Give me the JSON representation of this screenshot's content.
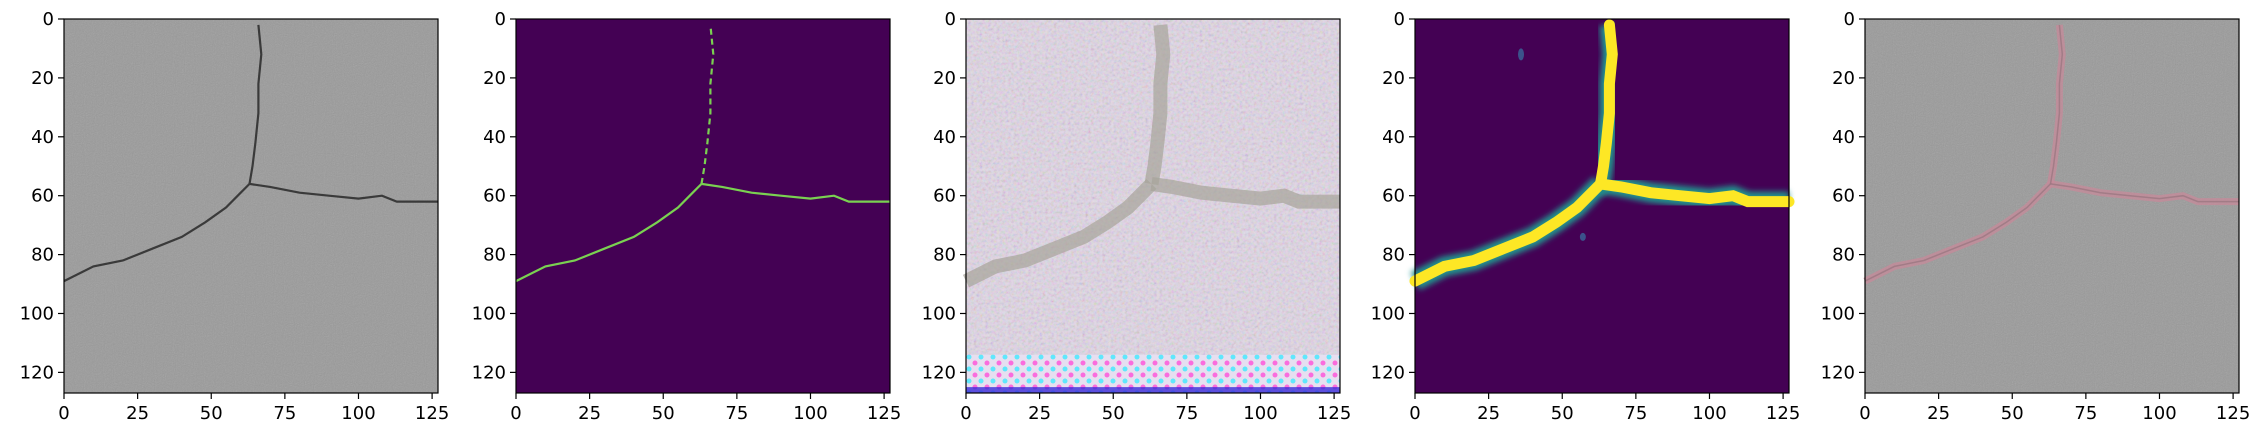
{
  "figure": {
    "panels": [
      {
        "kind": "photo",
        "description": "grayscale pavement crack photo"
      },
      {
        "kind": "mask",
        "description": "ground-truth binary crack mask"
      },
      {
        "kind": "noisy",
        "description": "reconstructed color-noise image"
      },
      {
        "kind": "heatmap",
        "description": "predicted crack probability map"
      },
      {
        "kind": "overlay",
        "description": "prediction overlaid on photo"
      }
    ],
    "x_ticks": [
      "0",
      "25",
      "50",
      "75",
      "100",
      "125"
    ],
    "y_ticks": [
      "0",
      "20",
      "40",
      "60",
      "80",
      "100",
      "120"
    ]
  },
  "colors": {
    "mask_bg": "#440154",
    "mask_line": "#7ad151",
    "heat_low": "#440154",
    "heat_mid": "#21918c",
    "heat_high": "#fde725",
    "photo_bg": "#9a9a9a",
    "crack": "#3a3a3a"
  }
}
